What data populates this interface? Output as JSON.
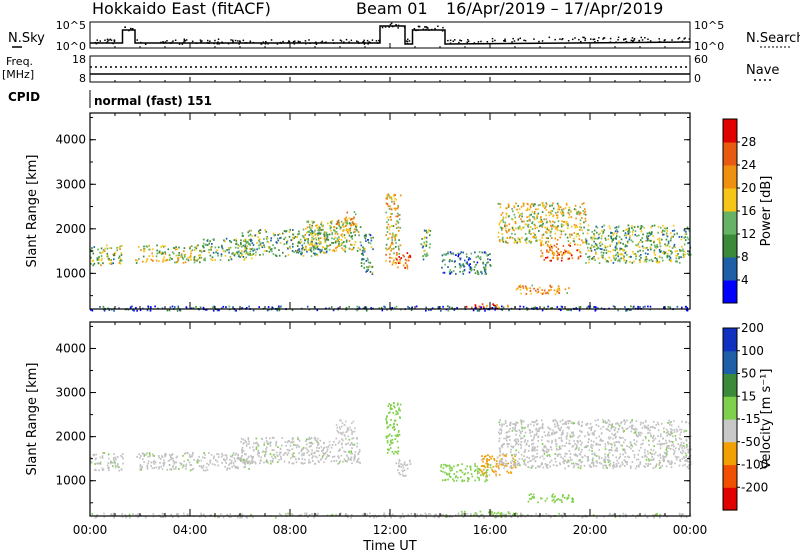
{
  "header": {
    "radar": "Hokkaido East (fitACF)",
    "beam": "Beam 01",
    "dates": "16/Apr/2019 – 17/Apr/2019"
  },
  "top_panels": {
    "nsky_label": "N.Sky",
    "nsearch_label": "N.Search",
    "freq_label": "Freq.",
    "freq_unit": "[MHz]",
    "nave_label": "Nave",
    "cpid_label": "CPID",
    "cpid_text": "normal (fast) 151",
    "noise_ticks": [
      "10^5",
      "10^0"
    ],
    "noise_right_ticks": [
      "10^5",
      "10^0"
    ],
    "freq_ticks": [
      "18",
      "8"
    ],
    "nave_ticks": [
      "60",
      "0"
    ]
  },
  "time_axis": {
    "label": "Time UT",
    "ticks": [
      "00:00",
      "04:00",
      "08:00",
      "12:00",
      "16:00",
      "20:00",
      "00:00"
    ]
  },
  "colors": {
    "power": [
      "#0000ff",
      "#1f5fa8",
      "#3a8a3a",
      "#66b366",
      "#f5c518",
      "#f09010",
      "#e85a10",
      "#e00000"
    ],
    "velocity": [
      "#e00000",
      "#f05000",
      "#f0a000",
      "#c8c8c8",
      "#7fd04a",
      "#3a8a3a",
      "#1f5fa8",
      "#1030c0"
    ],
    "gray_scatter": "#c0c0c0"
  },
  "chart_data": [
    {
      "type": "heatmap",
      "panel": "power",
      "ylabel": "Slant Range [km]",
      "xlabel": "",
      "y_ticks": [
        "1000",
        "2000",
        "3000",
        "4000"
      ],
      "ylim": [
        200,
        4600
      ],
      "xlim": [
        0,
        24
      ],
      "colorbar_label": "Power [dB]",
      "colorbar_ticks": [
        "4",
        "8",
        "12",
        "16",
        "20",
        "24",
        "28"
      ],
      "colorbar_range": [
        0,
        32
      ],
      "patches": [
        {
          "t0": 0.0,
          "t1": 1.3,
          "r0": 1200,
          "r1": 1650,
          "v": 14
        },
        {
          "t0": 1.8,
          "t1": 4.5,
          "r0": 1250,
          "r1": 1650,
          "v": 16
        },
        {
          "t0": 4.5,
          "t1": 6.5,
          "r0": 1300,
          "r1": 1800,
          "v": 13
        },
        {
          "t0": 6.0,
          "t1": 9.5,
          "r0": 1400,
          "r1": 2000,
          "v": 12
        },
        {
          "t0": 8.5,
          "t1": 10.8,
          "r0": 1500,
          "r1": 2200,
          "v": 15
        },
        {
          "t0": 9.8,
          "t1": 10.6,
          "r0": 1900,
          "r1": 2400,
          "v": 20
        },
        {
          "t0": 10.8,
          "t1": 11.3,
          "r0": 1000,
          "r1": 1900,
          "v": 10
        },
        {
          "t0": 11.8,
          "t1": 12.4,
          "r0": 1200,
          "r1": 2800,
          "v": 18
        },
        {
          "t0": 12.2,
          "t1": 12.8,
          "r0": 1100,
          "r1": 1500,
          "v": 26
        },
        {
          "t0": 13.2,
          "t1": 13.6,
          "r0": 1300,
          "r1": 2000,
          "v": 12
        },
        {
          "t0": 14.0,
          "t1": 16.0,
          "r0": 1000,
          "r1": 1500,
          "v": 9
        },
        {
          "t0": 16.3,
          "t1": 19.8,
          "r0": 1700,
          "r1": 2600,
          "v": 17
        },
        {
          "t0": 18.0,
          "t1": 19.6,
          "r0": 1300,
          "r1": 1700,
          "v": 24
        },
        {
          "t0": 19.8,
          "t1": 24.0,
          "r0": 1250,
          "r1": 2100,
          "v": 13
        },
        {
          "t0": 17.0,
          "t1": 19.2,
          "r0": 550,
          "r1": 750,
          "v": 22
        },
        {
          "t0": 14.8,
          "t1": 16.8,
          "r0": 220,
          "r1": 330,
          "v": 26
        },
        {
          "t0": 0.0,
          "t1": 24.0,
          "r0": 180,
          "r1": 280,
          "v": 6
        }
      ]
    },
    {
      "type": "heatmap",
      "panel": "velocity",
      "ylabel": "Slant Range [km]",
      "xlabel": "Time UT",
      "y_ticks": [
        "1000",
        "2000",
        "3000",
        "4000"
      ],
      "ylim": [
        200,
        4600
      ],
      "xlim": [
        0,
        24
      ],
      "colorbar_label": "Velocity [m s⁻¹]",
      "colorbar_ticks": [
        "-200",
        "-100",
        "-50",
        "-15",
        "15",
        "50",
        "100",
        "200"
      ],
      "colorbar_range": [
        -250,
        250
      ],
      "patches": [
        {
          "t0": 0.0,
          "t1": 1.3,
          "r0": 1250,
          "r1": 1650,
          "v": 0
        },
        {
          "t0": 1.8,
          "t1": 6.5,
          "r0": 1250,
          "r1": 1650,
          "v": 0
        },
        {
          "t0": 6.0,
          "t1": 10.8,
          "r0": 1400,
          "r1": 2000,
          "v": 0
        },
        {
          "t0": 9.8,
          "t1": 10.6,
          "r0": 2000,
          "r1": 2400,
          "v": -40
        },
        {
          "t0": 11.8,
          "t1": 12.4,
          "r0": 1600,
          "r1": 2800,
          "v": 30
        },
        {
          "t0": 12.2,
          "t1": 12.8,
          "r0": 1100,
          "r1": 1500,
          "v": 0
        },
        {
          "t0": 14.0,
          "t1": 16.0,
          "r0": 1000,
          "r1": 1400,
          "v": 30
        },
        {
          "t0": 15.5,
          "t1": 17.0,
          "r0": 1100,
          "r1": 1600,
          "v": -70
        },
        {
          "t0": 16.3,
          "t1": 24.0,
          "r0": 1300,
          "r1": 2400,
          "v": 0
        },
        {
          "t0": 17.5,
          "t1": 19.3,
          "r0": 520,
          "r1": 720,
          "v": 25
        },
        {
          "t0": 14.8,
          "t1": 17.5,
          "r0": 220,
          "r1": 320,
          "v": 30
        },
        {
          "t0": 0.0,
          "t1": 24.0,
          "r0": 180,
          "r1": 280,
          "v": 0
        }
      ]
    }
  ]
}
